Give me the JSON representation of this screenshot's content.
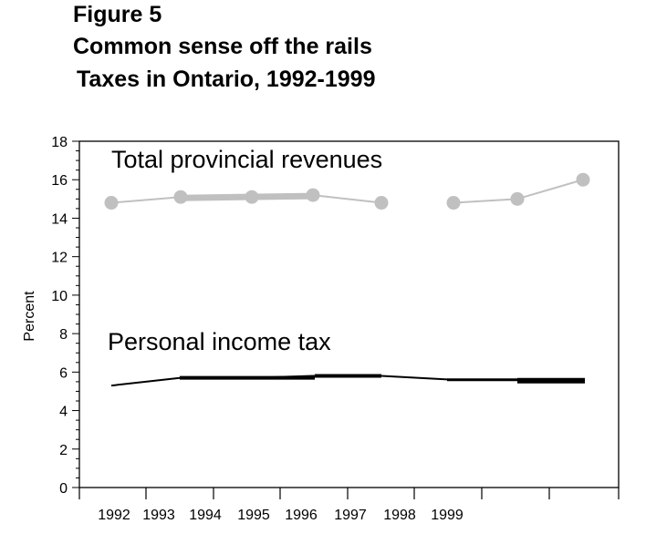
{
  "figure": {
    "label": "Figure 5",
    "title": "Common sense off the rails",
    "subtitle": "Taxes in Ontario, 1992-1999"
  },
  "chart_data": {
    "type": "line",
    "title": "Common sense off the rails",
    "subtitle": "Taxes in Ontario, 1992-1999",
    "xlabel": "",
    "ylabel": "Percent",
    "ylim": [
      0,
      18
    ],
    "yticks": [
      0,
      2,
      4,
      6,
      8,
      10,
      12,
      14,
      16,
      18
    ],
    "categories": [
      "1992",
      "1993",
      "1994",
      "1995",
      "1996",
      "1997",
      "1998",
      "1999"
    ],
    "grid": false,
    "series": [
      {
        "name": "Total provincial revenues",
        "color": "#c0c0c0",
        "marker": "circle",
        "values": [
          14.8,
          15.1,
          15.1,
          15.2,
          14.8,
          14.8,
          15.0,
          16.0
        ]
      },
      {
        "name": "Personal income tax",
        "color": "#000000",
        "marker": "none",
        "values": [
          5.3,
          5.7,
          5.7,
          5.8,
          5.8,
          5.6,
          5.6,
          5.6
        ]
      }
    ]
  }
}
